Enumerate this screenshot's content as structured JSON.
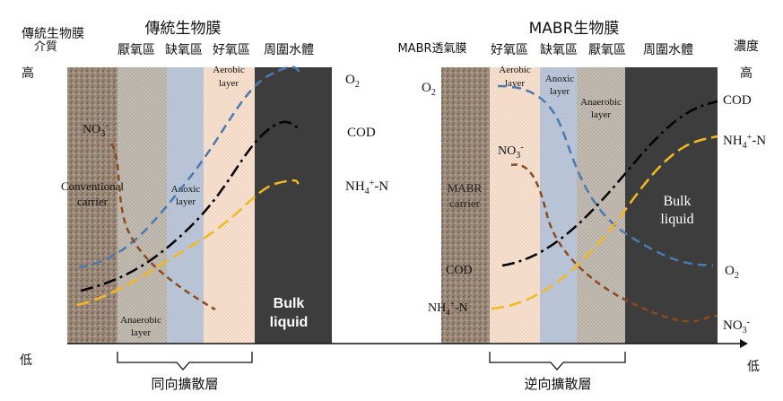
{
  "left": {
    "title": "傳統生物膜",
    "corner_title": "傳統生物膜",
    "medium_label": "介質",
    "zones": [
      "厭氧區",
      "缺氧區",
      "好氧區",
      "周圍水體"
    ],
    "axis_high": "高",
    "axis_low": "低",
    "carrier_label": [
      "Conventional",
      "carrier"
    ],
    "anaerobic_label": [
      "Anaerobic",
      "layer"
    ],
    "anoxic_label": [
      "Anoxic",
      "layer"
    ],
    "aerobic_label": [
      "Aerobic",
      "layer"
    ],
    "bulk_label": [
      "Bulk",
      "liquid"
    ],
    "series_right": [
      "O",
      "COD",
      "NH",
      "-N"
    ],
    "no3_label": "NO",
    "brace_label": "同向擴散層"
  },
  "right": {
    "title": "MABR生物膜",
    "membrane_label": "MABR透氣膜",
    "zones": [
      "好氧區",
      "缺氧區",
      "厭氧區",
      "周圍水體"
    ],
    "conc_label": "濃度",
    "axis_high": "高",
    "axis_low": "低",
    "carrier_label": [
      "MABR",
      "carrier"
    ],
    "aerobic_label": [
      "Aerobic",
      "layer"
    ],
    "anoxic_label": [
      "Anoxic",
      "layer"
    ],
    "anaerobic_label": [
      "Anaerobic",
      "layer"
    ],
    "bulk_label": [
      "Bulk",
      "liquid"
    ],
    "o2_left": "O",
    "no3_label": "NO",
    "cod_left": "COD",
    "nh4_left": "NH",
    "nh4_left_suffix": "-N",
    "series_right": [
      "COD",
      "NH",
      "-N",
      "O",
      "NO"
    ],
    "brace_label": "逆向擴散層"
  },
  "colors": {
    "o2": "#4a7ab0",
    "cod": "#000000",
    "nh4": "#f5b820",
    "no3": "#8a4a1e",
    "carrier": "#8a7868",
    "anaerobic": "#b4aca2",
    "anoxic": "#b8c4d6",
    "aerobic": "#f6e0d0",
    "bulk": "#3d3d3d"
  }
}
